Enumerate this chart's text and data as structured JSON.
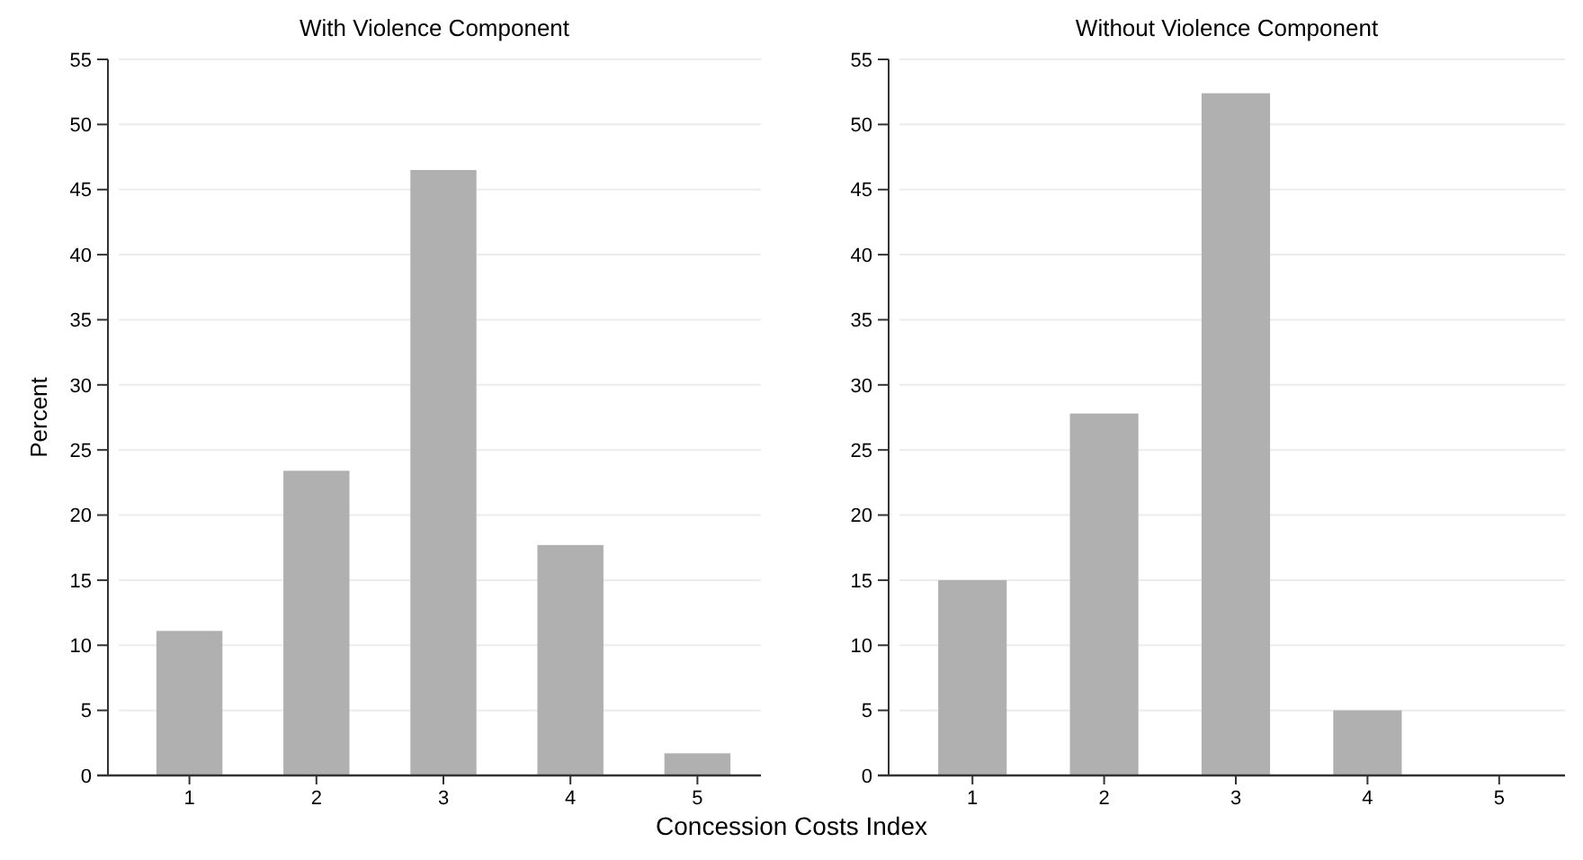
{
  "chart_data": [
    {
      "type": "bar",
      "title": "With Violence Component",
      "ylabel": "Percent",
      "xlabel": "Concession Costs Index",
      "categories": [
        "1",
        "2",
        "3",
        "4",
        "5"
      ],
      "values": [
        11.1,
        23.4,
        46.5,
        17.7,
        1.7
      ],
      "color": "#b0b0b0",
      "ylim": [
        0,
        55
      ],
      "yticks": [
        0,
        5,
        10,
        15,
        20,
        25,
        30,
        35,
        40,
        45,
        50,
        55
      ],
      "grid": "y"
    },
    {
      "type": "bar",
      "title": "Without Violence Component",
      "categories": [
        "1",
        "2",
        "3",
        "4",
        "5"
      ],
      "values": [
        15,
        27.8,
        52.4,
        5,
        0
      ],
      "color": "#b0b0b0",
      "ylim": [
        0,
        55
      ],
      "yticks": [
        0,
        5,
        10,
        15,
        20,
        25,
        30,
        35,
        40,
        45,
        50,
        55
      ],
      "grid": "y"
    }
  ]
}
